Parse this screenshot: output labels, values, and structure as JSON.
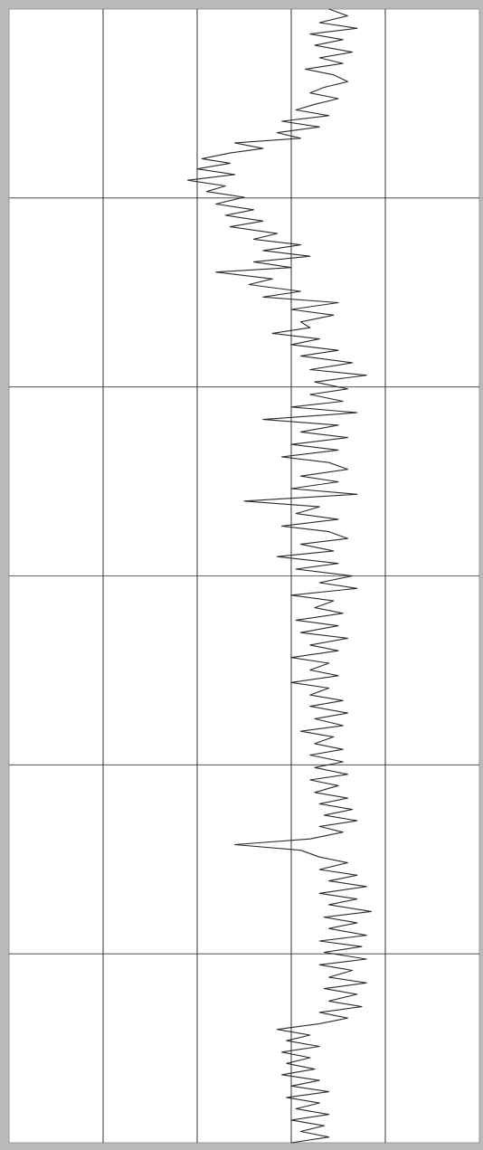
{
  "chart_data": {
    "type": "line",
    "orientation": "vertical-depth-track",
    "title": "",
    "xlabel": "",
    "ylabel": "",
    "xlim": [
      0,
      5
    ],
    "ylim": [
      0,
      100
    ],
    "y_inverted": true,
    "grid": true,
    "vertical_divisions": 5,
    "horizontal_divisions": 6,
    "colors": {
      "background": "#ffffff",
      "frame": "#b9b9b9",
      "gridline": "#333333",
      "curve": "#2a2a2a"
    },
    "series": [
      {
        "points": [
          [
            3.4,
            0.0
          ],
          [
            3.6,
            0.6
          ],
          [
            3.3,
            1.2
          ],
          [
            3.7,
            1.7
          ],
          [
            3.2,
            2.2
          ],
          [
            3.55,
            2.7
          ],
          [
            3.25,
            3.2
          ],
          [
            3.65,
            3.8
          ],
          [
            3.3,
            4.3
          ],
          [
            3.55,
            4.8
          ],
          [
            3.15,
            5.3
          ],
          [
            3.45,
            5.8
          ],
          [
            3.6,
            6.4
          ],
          [
            3.35,
            6.9
          ],
          [
            3.2,
            7.4
          ],
          [
            3.5,
            7.9
          ],
          [
            3.25,
            8.4
          ],
          [
            3.05,
            8.9
          ],
          [
            3.4,
            9.4
          ],
          [
            2.9,
            9.9
          ],
          [
            3.3,
            10.4
          ],
          [
            2.85,
            10.9
          ],
          [
            3.1,
            11.4
          ],
          [
            2.4,
            11.8
          ],
          [
            2.7,
            12.3
          ],
          [
            2.35,
            12.7
          ],
          [
            2.05,
            13.2
          ],
          [
            2.35,
            13.6
          ],
          [
            2.0,
            14.1
          ],
          [
            2.4,
            14.6
          ],
          [
            1.9,
            15.1
          ],
          [
            2.3,
            15.6
          ],
          [
            2.1,
            16.1
          ],
          [
            2.5,
            16.6
          ],
          [
            2.2,
            17.2
          ],
          [
            2.6,
            17.7
          ],
          [
            2.3,
            18.2
          ],
          [
            2.7,
            18.7
          ],
          [
            2.35,
            19.2
          ],
          [
            2.85,
            19.8
          ],
          [
            2.6,
            20.3
          ],
          [
            3.1,
            20.8
          ],
          [
            2.7,
            21.3
          ],
          [
            3.2,
            21.8
          ],
          [
            2.6,
            22.3
          ],
          [
            3.0,
            22.8
          ],
          [
            2.2,
            23.2
          ],
          [
            2.8,
            23.8
          ],
          [
            2.55,
            24.3
          ],
          [
            3.1,
            24.9
          ],
          [
            2.7,
            25.4
          ],
          [
            3.5,
            25.9
          ],
          [
            3.0,
            26.5
          ],
          [
            3.45,
            27.0
          ],
          [
            3.1,
            27.6
          ],
          [
            3.2,
            28.1
          ],
          [
            2.8,
            28.6
          ],
          [
            3.3,
            29.1
          ],
          [
            3.0,
            29.6
          ],
          [
            3.5,
            30.1
          ],
          [
            3.1,
            30.6
          ],
          [
            3.65,
            31.2
          ],
          [
            3.2,
            31.8
          ],
          [
            3.8,
            32.3
          ],
          [
            3.25,
            32.9
          ],
          [
            3.6,
            33.5
          ],
          [
            3.2,
            34.0
          ],
          [
            3.55,
            34.6
          ],
          [
            3.0,
            35.1
          ],
          [
            3.7,
            35.6
          ],
          [
            2.7,
            36.2
          ],
          [
            3.5,
            36.7
          ],
          [
            3.1,
            37.3
          ],
          [
            3.6,
            37.8
          ],
          [
            3.0,
            38.4
          ],
          [
            3.5,
            38.9
          ],
          [
            2.9,
            39.5
          ],
          [
            3.4,
            40.0
          ],
          [
            3.6,
            40.6
          ],
          [
            3.1,
            41.2
          ],
          [
            3.5,
            41.7
          ],
          [
            3.0,
            42.3
          ],
          [
            3.7,
            42.8
          ],
          [
            2.5,
            43.4
          ],
          [
            3.3,
            43.9
          ],
          [
            3.05,
            44.5
          ],
          [
            3.5,
            45.0
          ],
          [
            2.9,
            45.6
          ],
          [
            3.4,
            46.1
          ],
          [
            3.6,
            46.7
          ],
          [
            3.1,
            47.2
          ],
          [
            3.45,
            47.8
          ],
          [
            2.85,
            48.3
          ],
          [
            3.5,
            48.9
          ],
          [
            3.05,
            49.4
          ],
          [
            3.65,
            50.0
          ],
          [
            3.3,
            50.6
          ],
          [
            3.7,
            51.1
          ],
          [
            3.0,
            51.7
          ],
          [
            3.45,
            52.2
          ],
          [
            3.25,
            52.8
          ],
          [
            3.55,
            53.3
          ],
          [
            3.05,
            53.9
          ],
          [
            3.5,
            54.4
          ],
          [
            3.1,
            55.0
          ],
          [
            3.6,
            55.5
          ],
          [
            3.2,
            56.1
          ],
          [
            3.5,
            56.6
          ],
          [
            3.0,
            57.2
          ],
          [
            3.4,
            57.7
          ],
          [
            3.2,
            58.3
          ],
          [
            3.5,
            58.8
          ],
          [
            3.0,
            59.4
          ],
          [
            3.4,
            59.9
          ],
          [
            3.2,
            60.5
          ],
          [
            3.55,
            61.0
          ],
          [
            3.2,
            61.5
          ],
          [
            3.6,
            62.1
          ],
          [
            3.25,
            62.6
          ],
          [
            3.55,
            63.2
          ],
          [
            3.1,
            63.7
          ],
          [
            3.45,
            64.2
          ],
          [
            3.25,
            64.8
          ],
          [
            3.55,
            65.3
          ],
          [
            3.2,
            65.8
          ],
          [
            3.55,
            66.4
          ],
          [
            3.25,
            66.9
          ],
          [
            3.6,
            67.5
          ],
          [
            3.2,
            68.0
          ],
          [
            3.5,
            68.5
          ],
          [
            3.25,
            69.1
          ],
          [
            3.6,
            69.6
          ],
          [
            3.3,
            70.1
          ],
          [
            3.65,
            70.6
          ],
          [
            3.35,
            71.1
          ],
          [
            3.7,
            71.6
          ],
          [
            3.3,
            72.1
          ],
          [
            3.55,
            72.6
          ],
          [
            3.2,
            73.2
          ],
          [
            2.4,
            73.7
          ],
          [
            3.1,
            74.2
          ],
          [
            3.3,
            74.8
          ],
          [
            3.6,
            75.3
          ],
          [
            3.3,
            75.9
          ],
          [
            3.7,
            76.4
          ],
          [
            3.4,
            76.9
          ],
          [
            3.8,
            77.4
          ],
          [
            3.3,
            78.0
          ],
          [
            3.7,
            78.5
          ],
          [
            3.4,
            79.0
          ],
          [
            3.85,
            79.6
          ],
          [
            3.35,
            80.1
          ],
          [
            3.7,
            80.6
          ],
          [
            3.4,
            81.1
          ],
          [
            3.8,
            81.7
          ],
          [
            3.3,
            82.2
          ],
          [
            3.75,
            82.7
          ],
          [
            3.35,
            83.2
          ],
          [
            3.8,
            83.8
          ],
          [
            3.3,
            84.3
          ],
          [
            3.65,
            84.8
          ],
          [
            3.4,
            85.4
          ],
          [
            3.8,
            85.9
          ],
          [
            3.35,
            86.4
          ],
          [
            3.7,
            86.9
          ],
          [
            3.4,
            87.5
          ],
          [
            3.75,
            88.0
          ],
          [
            3.3,
            88.5
          ],
          [
            3.6,
            89.0
          ],
          [
            3.3,
            89.5
          ],
          [
            2.85,
            90.0
          ],
          [
            3.2,
            90.5
          ],
          [
            2.95,
            91.0
          ],
          [
            3.3,
            91.5
          ],
          [
            2.9,
            92.0
          ],
          [
            3.2,
            92.5
          ],
          [
            2.95,
            93.0
          ],
          [
            3.25,
            93.5
          ],
          [
            2.9,
            94.0
          ],
          [
            3.3,
            94.5
          ],
          [
            3.0,
            95.0
          ],
          [
            3.4,
            95.5
          ],
          [
            2.95,
            96.0
          ],
          [
            3.3,
            96.5
          ],
          [
            3.05,
            97.0
          ],
          [
            3.4,
            97.5
          ],
          [
            3.0,
            98.0
          ],
          [
            3.35,
            98.5
          ],
          [
            3.1,
            99.0
          ],
          [
            3.4,
            99.5
          ],
          [
            3.0,
            100.0
          ]
        ]
      }
    ]
  }
}
